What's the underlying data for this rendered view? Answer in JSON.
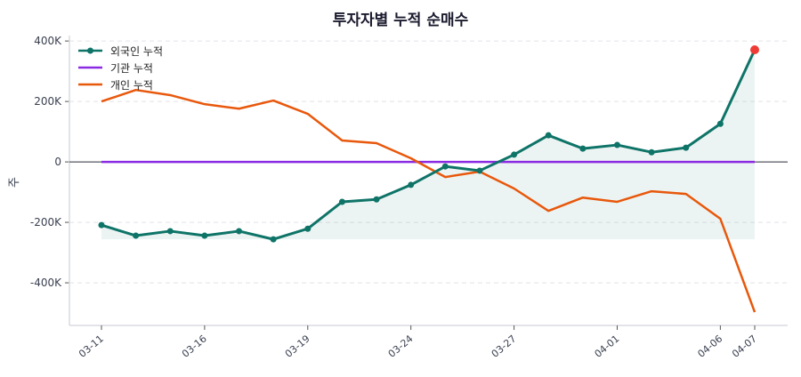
{
  "chart_data": {
    "type": "line",
    "title": "투자자별 누적 순매수",
    "ylabel": "주",
    "xlabel": "",
    "ylim": [
      -541000,
      418000
    ],
    "yticks": [
      -400000,
      -200000,
      0,
      200000,
      400000
    ],
    "ytick_labels": [
      "-400K",
      "-200K",
      "0",
      "200K",
      "400K"
    ],
    "x": [
      "03-11",
      "03-12",
      "03-13",
      "03-16",
      "03-17",
      "03-18",
      "03-19",
      "03-20",
      "03-23",
      "03-24",
      "03-25",
      "03-26",
      "03-27",
      "03-30",
      "03-31",
      "04-01",
      "04-02",
      "04-03",
      "04-06",
      "04-07"
    ],
    "xtick_labels": [
      "03-11",
      "03-16",
      "03-19",
      "03-24",
      "03-27",
      "04-01",
      "04-06",
      "04-07"
    ],
    "grid": "horizontal dashed",
    "legend_position": "top-left",
    "series": [
      {
        "name": "외국인 누적",
        "color": "#0f7468",
        "markers": true,
        "fill": true,
        "values": [
          -209000,
          -244000,
          -229000,
          -244000,
          -229000,
          -256000,
          -221000,
          -132000,
          -124000,
          -76000,
          -15000,
          -29000,
          24000,
          88000,
          44000,
          56000,
          32000,
          47000,
          126000,
          371000
        ]
      },
      {
        "name": "기관 누적",
        "color": "#8a2be2",
        "markers": false,
        "values": [
          0,
          0,
          0,
          0,
          0,
          0,
          0,
          0,
          0,
          0,
          0,
          0,
          0,
          0,
          0,
          0,
          0,
          0,
          0,
          0
        ]
      },
      {
        "name": "개인 누적",
        "color": "#e8580c",
        "markers": false,
        "values": [
          200000,
          238000,
          221000,
          191000,
          176000,
          203000,
          159000,
          71000,
          62000,
          12000,
          -50000,
          -32000,
          -88000,
          -162000,
          -118000,
          -132000,
          -97000,
          -106000,
          -188000,
          -497000
        ]
      }
    ],
    "last_point_highlight_color": "#ef3b36"
  }
}
